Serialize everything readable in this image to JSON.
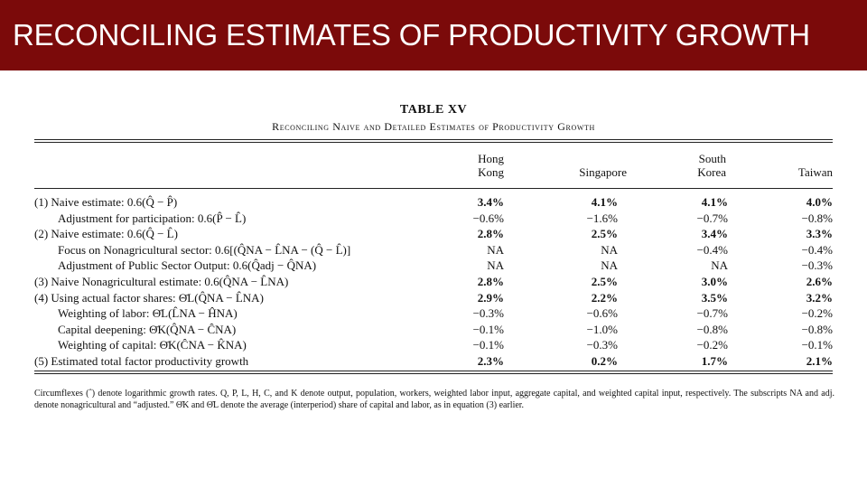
{
  "slide": {
    "banner_title": "RECONCILING ESTIMATES OF PRODUCTIVITY GROWTH",
    "banner_color": "#7b0a0a"
  },
  "table": {
    "title": "TABLE XV",
    "subtitle": "Reconciling Naive and Detailed Estimates of Productivity Growth",
    "columns": [
      {
        "line1": "Hong",
        "line2": "Kong"
      },
      {
        "line1": "",
        "line2": "Singapore"
      },
      {
        "line1": "South",
        "line2": "Korea"
      },
      {
        "line1": "",
        "line2": "Taiwan"
      }
    ],
    "rows": [
      {
        "label": "(1) Naive estimate: 0.6(Q̂ − P̂)",
        "indent": false,
        "bold": true,
        "values": [
          "3.4%",
          "4.1%",
          "4.1%",
          "4.0%"
        ]
      },
      {
        "label": "Adjustment for participation: 0.6(P̂ − L̂)",
        "indent": true,
        "bold": false,
        "values": [
          "−0.6%",
          "−1.6%",
          "−0.7%",
          "−0.8%"
        ]
      },
      {
        "label": "(2) Naive estimate: 0.6(Q̂ − L̂)",
        "indent": false,
        "bold": true,
        "values": [
          "2.8%",
          "2.5%",
          "3.4%",
          "3.3%"
        ]
      },
      {
        "label": "Focus on Nonagricultural sector: 0.6[(Q̂NA − L̂NA − (Q̂ − L̂)]",
        "indent": true,
        "bold": false,
        "values": [
          "NA",
          "NA",
          "−0.4%",
          "−0.4%"
        ]
      },
      {
        "label": "Adjustment of Public Sector Output: 0.6(Q̂adj − Q̂NA)",
        "indent": true,
        "bold": false,
        "values": [
          "NA",
          "NA",
          "NA",
          "−0.3%"
        ]
      },
      {
        "label": "(3) Naive Nonagricultural estimate: 0.6(Q̂NA − L̂NA)",
        "indent": false,
        "bold": true,
        "values": [
          "2.8%",
          "2.5%",
          "3.0%",
          "2.6%"
        ]
      },
      {
        "label": "(4) Using actual factor shares: Θ̄L(Q̂NA − L̂NA)",
        "indent": false,
        "bold": true,
        "values": [
          "2.9%",
          "2.2%",
          "3.5%",
          "3.2%"
        ]
      },
      {
        "label": "Weighting of labor: Θ̄L(L̂NA − ĤNA)",
        "indent": true,
        "bold": false,
        "values": [
          "−0.3%",
          "−0.6%",
          "−0.7%",
          "−0.2%"
        ]
      },
      {
        "label": "Capital deepening: Θ̄K(Q̂NA − ĈNA)",
        "indent": true,
        "bold": false,
        "values": [
          "−0.1%",
          "−1.0%",
          "−0.8%",
          "−0.8%"
        ]
      },
      {
        "label": "Weighting of capital: Θ̄K(ĈNA − K̂NA)",
        "indent": true,
        "bold": false,
        "values": [
          "−0.1%",
          "−0.3%",
          "−0.2%",
          "−0.1%"
        ]
      },
      {
        "label": "(5) Estimated total factor productivity growth",
        "indent": false,
        "bold": true,
        "values": [
          "2.3%",
          "0.2%",
          "1.7%",
          "2.1%"
        ]
      }
    ],
    "notes": "Circumflexes (ˆ) denote logarithmic growth rates. Q, P, L, H, C, and K denote output, population, workers, weighted labor input, aggregate capital, and weighted capital input, respectively. The subscripts NA and adj. denote nonagricultural and “adjusted.” Θ̄K and Θ̄L denote the average (interperiod) share of capital and labor, as in equation (3) earlier."
  }
}
